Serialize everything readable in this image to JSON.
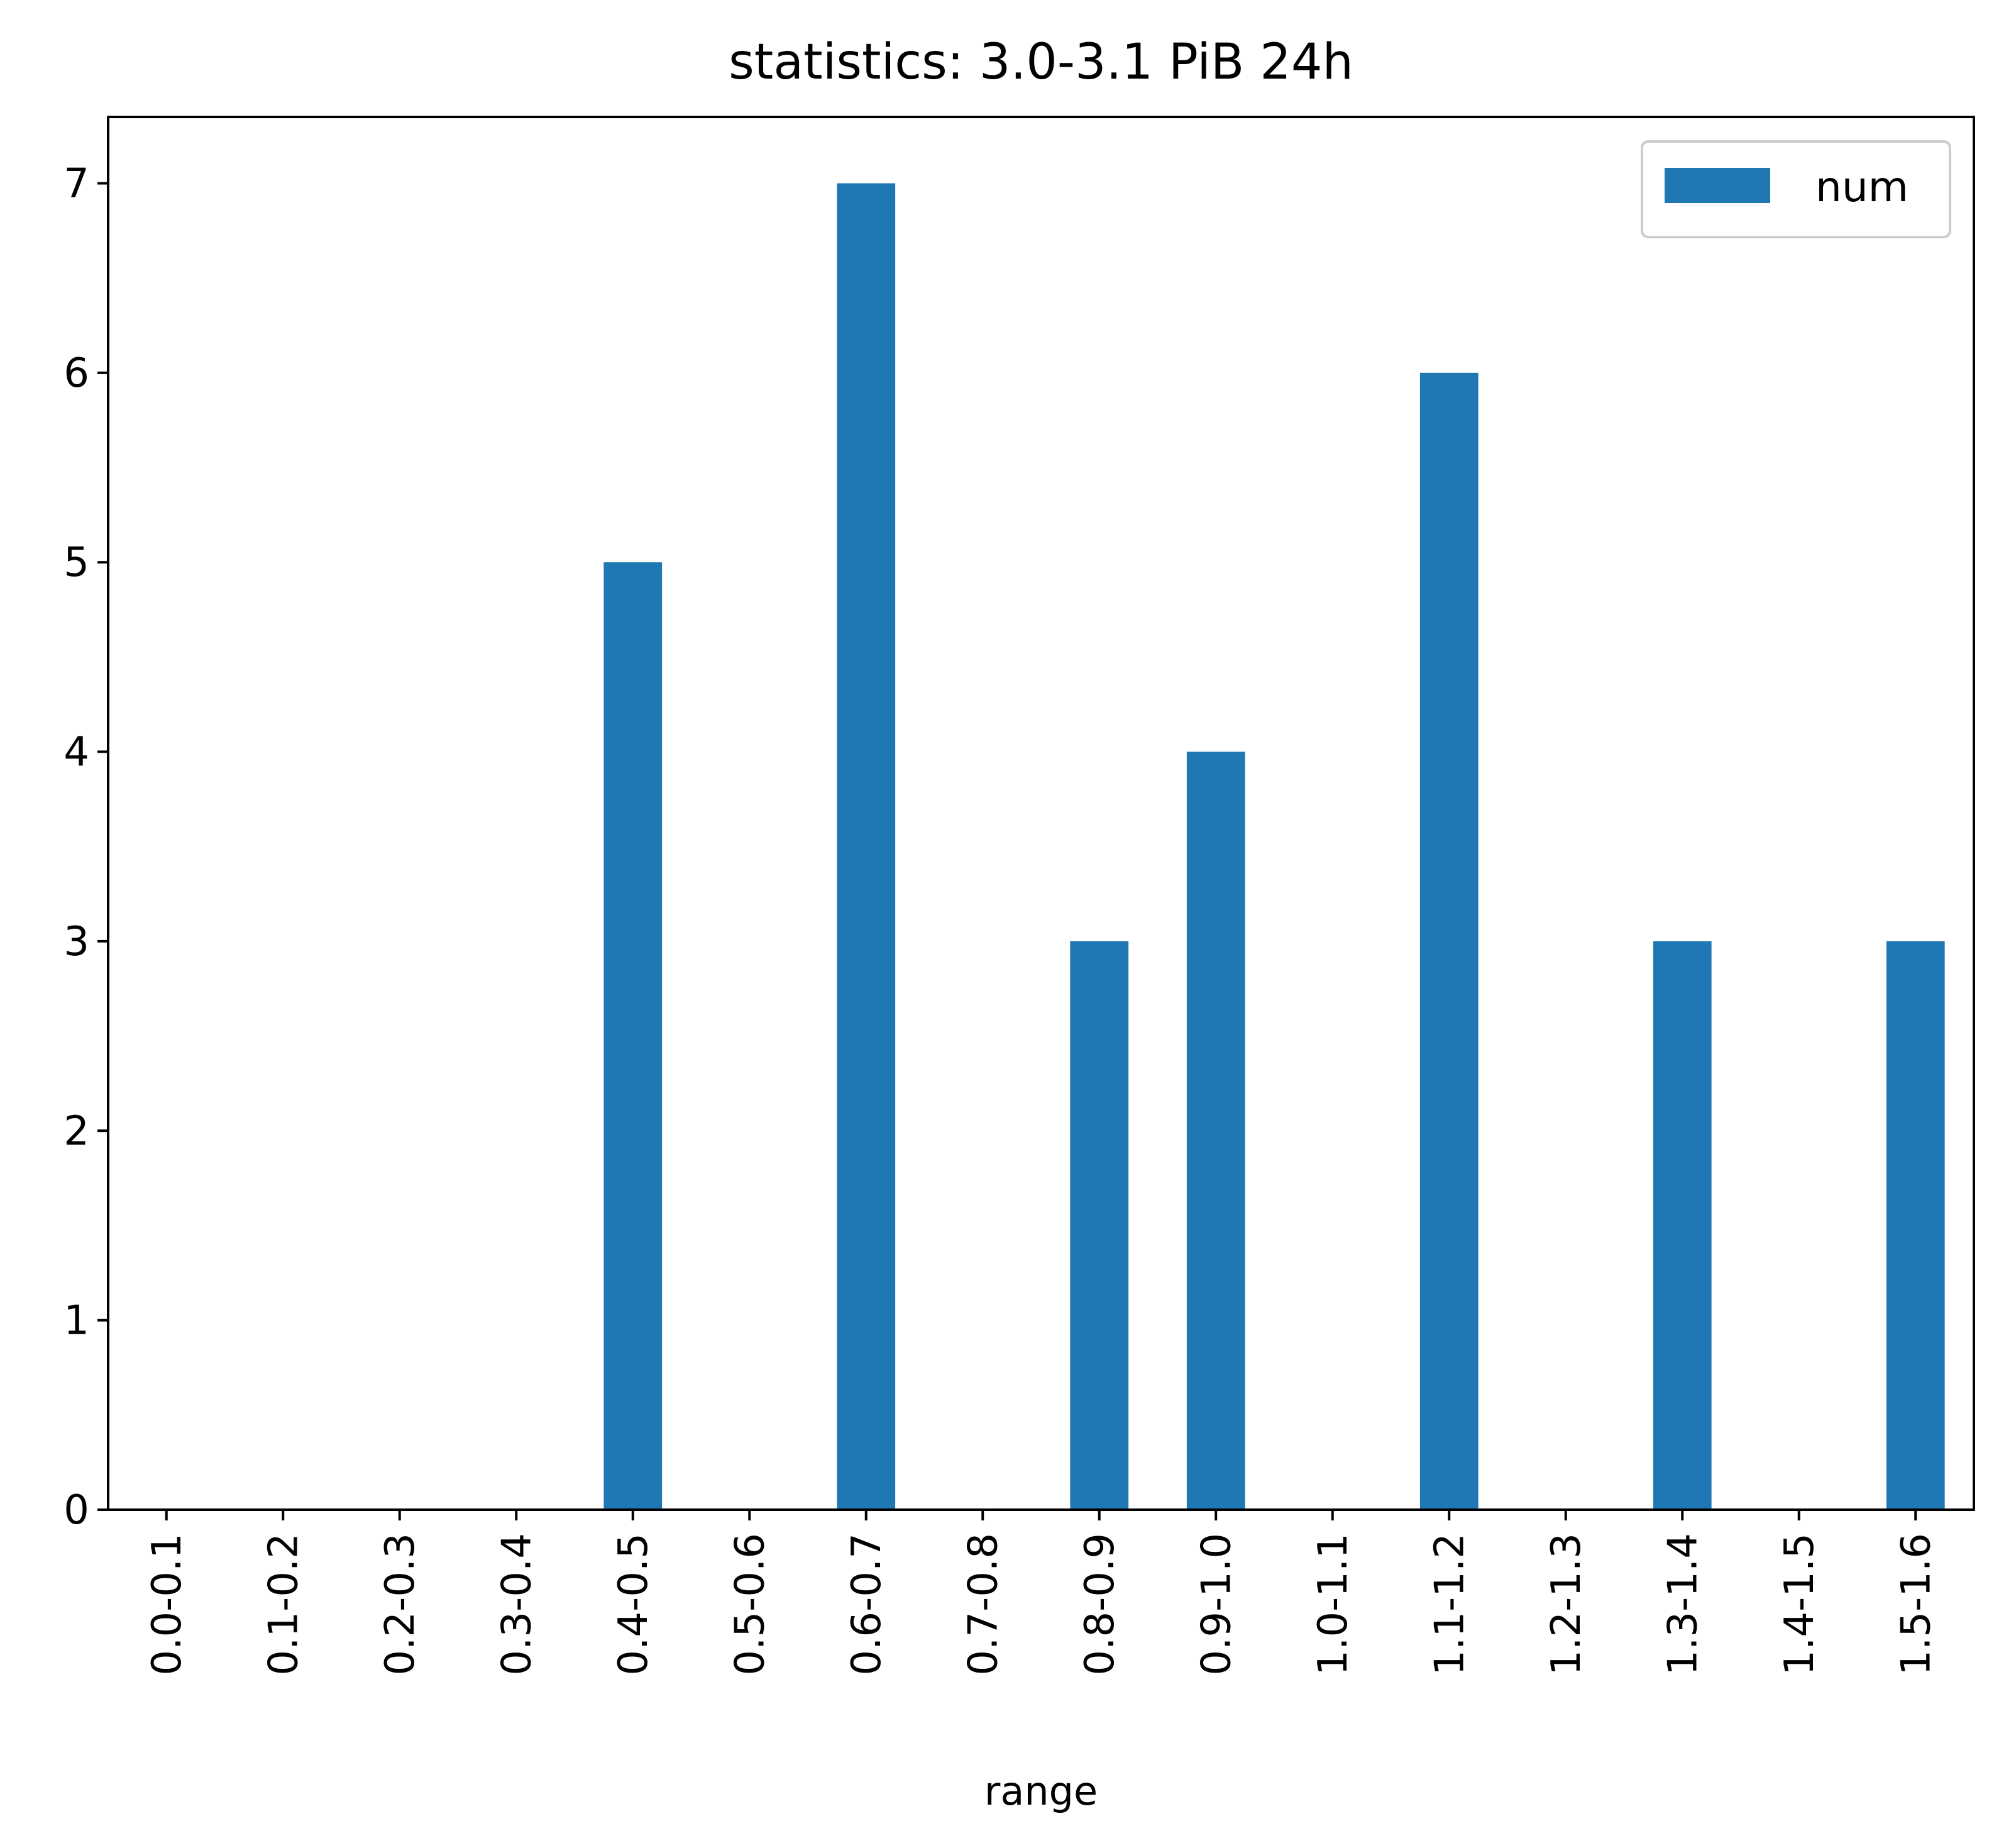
{
  "chart_data": {
    "type": "bar",
    "title": "statistics: 3.0-3.1 PiB 24h",
    "xlabel": "range",
    "ylabel": "",
    "categories": [
      "0.0-0.1",
      "0.1-0.2",
      "0.2-0.3",
      "0.3-0.4",
      "0.4-0.5",
      "0.5-0.6",
      "0.6-0.7",
      "0.7-0.8",
      "0.8-0.9",
      "0.9-1.0",
      "1.0-1.1",
      "1.1-1.2",
      "1.2-1.3",
      "1.3-1.4",
      "1.4-1.5",
      "1.5-1.6"
    ],
    "series": [
      {
        "name": "num",
        "color": "#1f77b4",
        "values": [
          0,
          0,
          0,
          0,
          5,
          0,
          7,
          0,
          3,
          4,
          0,
          6,
          0,
          3,
          0,
          3
        ]
      }
    ],
    "ylim": [
      0,
      7.35
    ],
    "yticks": [
      0,
      1,
      2,
      3,
      4,
      5,
      6,
      7
    ],
    "grid": false,
    "legend_position": "top-right"
  }
}
